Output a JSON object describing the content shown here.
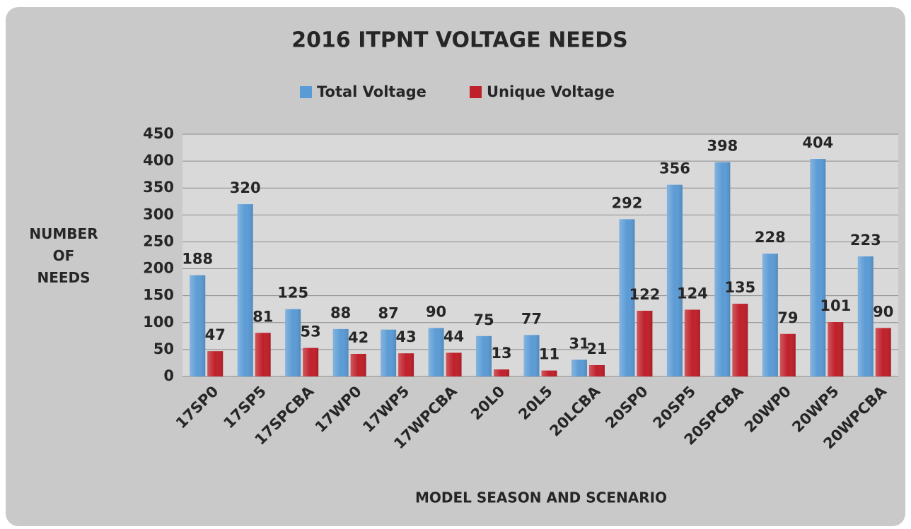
{
  "chart_data": {
    "type": "bar",
    "title": "2016 ITPNT VOLTAGE NEEDS",
    "x_label": "MODEL SEASON AND SCENARIO",
    "y_label": "NUMBER OF NEEDS",
    "categories": [
      "17SP0",
      "17SP5",
      "17SPCBA",
      "17WP0",
      "17WP5",
      "17WPCBA",
      "20L0",
      "20L5",
      "20LCBA",
      "20SP0",
      "20SP5",
      "20SPCBA",
      "20WP0",
      "20WP5",
      "20WPCBA"
    ],
    "series": [
      {
        "name": "Total Voltage",
        "color": "#5b9bd5",
        "values": [
          188,
          320,
          125,
          88,
          87,
          90,
          75,
          77,
          31,
          292,
          356,
          398,
          228,
          404,
          223
        ]
      },
      {
        "name": "Unique Voltage",
        "color": "#c0202a",
        "values": [
          47,
          81,
          53,
          42,
          43,
          44,
          13,
          11,
          21,
          122,
          124,
          135,
          79,
          101,
          90
        ]
      }
    ],
    "ylim": [
      0,
      450
    ],
    "yticks": [
      0,
      50,
      100,
      150,
      200,
      250,
      300,
      350,
      400,
      450
    ],
    "grid": true,
    "legend": "top"
  }
}
